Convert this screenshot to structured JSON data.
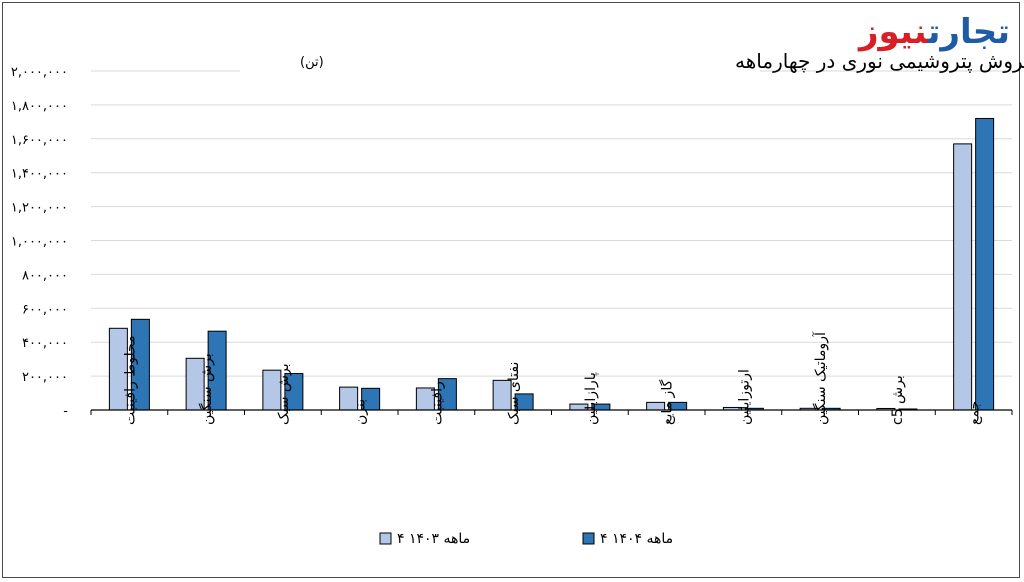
{
  "brand": {
    "part1": "تجارت",
    "part2": "نیوز",
    "color1": "#1f5aa6",
    "color2": "#d81f26"
  },
  "chart_data": {
    "type": "bar",
    "title": "مقدار فروش پتروشیمی نوری در چهارماهه",
    "title_unit": "(تن)",
    "categories": [
      "مخلوط رافینیت",
      "برش سنگین",
      "برش سبک",
      "بنزن",
      "رافینیت",
      "نفتای سبک",
      "پارازایلین",
      "گاز مایع",
      "ارتوزایلین",
      "آروماتیک سنگین",
      "برش c5",
      "جمع"
    ],
    "series": [
      {
        "name": "۴ ماهه ۱۴۰۳",
        "color": "#b4c7e7",
        "values": [
          482000,
          305000,
          235000,
          135000,
          130000,
          175000,
          35000,
          45000,
          15000,
          10000,
          9000,
          1570000
        ]
      },
      {
        "name": "۴ ماهه ۱۴۰۴",
        "color": "#2e75b6",
        "values": [
          535000,
          465000,
          215000,
          128000,
          185000,
          95000,
          35000,
          45000,
          10000,
          10000,
          6000,
          1720000
        ]
      }
    ],
    "ylim": [
      0,
      2000000
    ],
    "yticks": [
      0,
      200000,
      400000,
      600000,
      800000,
      1000000,
      1200000,
      1400000,
      1600000,
      1800000,
      2000000
    ],
    "ytick_labels": [
      "-",
      "۲۰۰,۰۰۰",
      "۴۰۰,۰۰۰",
      "۶۰۰,۰۰۰",
      "۸۰۰,۰۰۰",
      "۱,۰۰۰,۰۰۰",
      "۱,۲۰۰,۰۰۰",
      "۱,۴۰۰,۰۰۰",
      "۱,۶۰۰,۰۰۰",
      "۱,۸۰۰,۰۰۰",
      "۲,۰۰۰,۰۰۰"
    ],
    "grid": true,
    "legend_position": "bottom-center"
  }
}
